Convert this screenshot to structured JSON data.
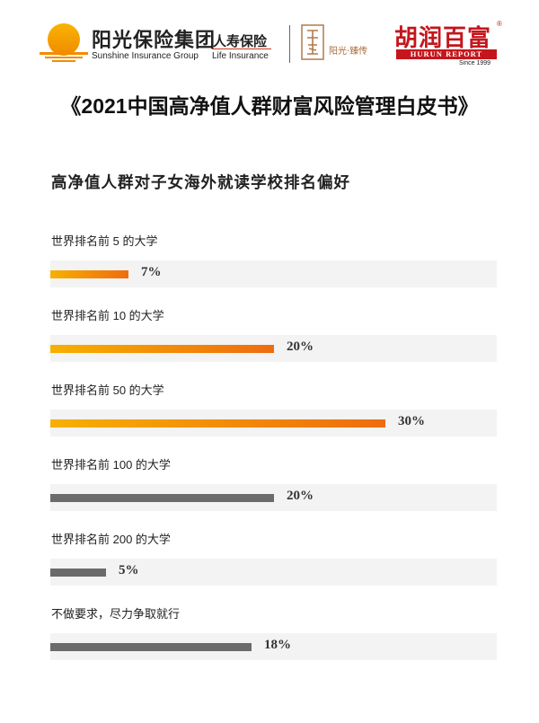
{
  "header": {
    "sunshine_cn": "阳光保险集团",
    "sunshine_en": "Sunshine Insurance Group",
    "life_cn": "人寿保险",
    "life_en": "Life Insurance",
    "yangguang_text": "阳光·臻传",
    "hurun_cn": "胡润百富",
    "hurun_reg": "®",
    "hurun_en": "HURUN REPORT",
    "hurun_since": "Since 1999"
  },
  "main_title": "《2021中国高净值人群财富风险管理白皮书》",
  "colors": {
    "orange_start": "#f7b000",
    "orange_end": "#ee6c0f",
    "gray": "#6b6b6b",
    "track": "#f3f3f3"
  },
  "chart_data": {
    "type": "bar",
    "orientation": "horizontal",
    "title": "高净值人群对子女海外就读学校排名偏好",
    "categories": [
      "世界排名前 5 的大学",
      "世界排名前 10 的大学",
      "世界排名前 50 的大学",
      "世界排名前 100 的大学",
      "世界排名前 200 的大学",
      "不做要求，尽力争取就行"
    ],
    "values": [
      7,
      20,
      30,
      20,
      5,
      18
    ],
    "value_labels": [
      "7%",
      "20%",
      "30%",
      "20%",
      "5%",
      "18%"
    ],
    "bar_colors": [
      "orange",
      "orange",
      "orange",
      "gray",
      "gray",
      "gray"
    ],
    "unit": "%",
    "xlim": [
      0,
      40
    ]
  }
}
